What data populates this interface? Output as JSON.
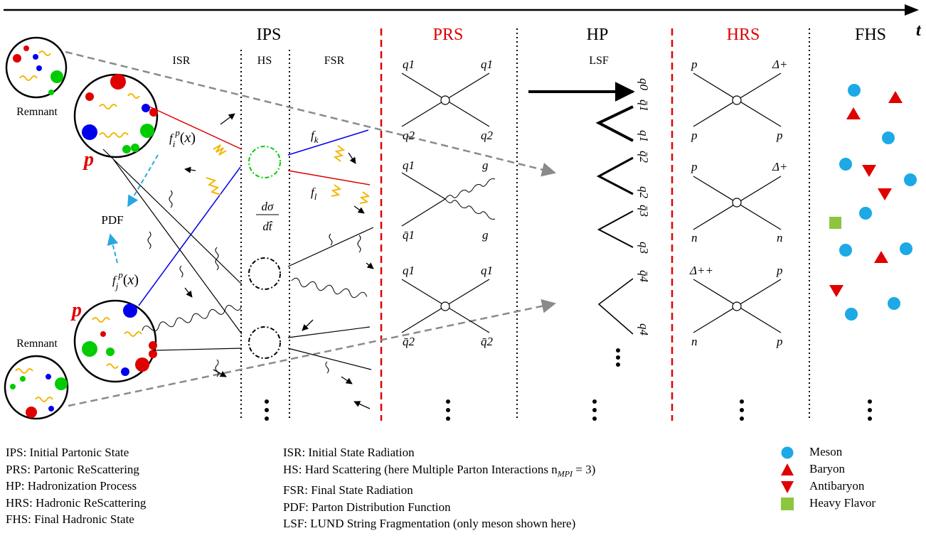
{
  "time_axis_label": "t",
  "stages": [
    {
      "id": "IPS",
      "label": "IPS",
      "color": "#000000"
    },
    {
      "id": "PRS",
      "label": "PRS",
      "color": "#e00000"
    },
    {
      "id": "HP",
      "label": "HP",
      "color": "#000000"
    },
    {
      "id": "HRS",
      "label": "HRS",
      "color": "#e00000"
    },
    {
      "id": "FHS",
      "label": "FHS",
      "color": "#000000"
    }
  ],
  "substages": {
    "isr": "ISR",
    "hs": "HS",
    "fsr": "FSR",
    "lsf": "LSF"
  },
  "labels": {
    "remnant_top": "Remnant",
    "remnant_bottom": "Remnant",
    "proton_top": "p",
    "proton_bottom": "p",
    "pdf": "PDF",
    "fi": "f",
    "fj": "f",
    "fk": "f",
    "fl": "f",
    "dsigma_num": "dσ",
    "dsigma_den": "dt̂"
  },
  "prs_diagrams": [
    {
      "tl": "q1",
      "tr": "q1",
      "bl": "q2",
      "br": "q2"
    },
    {
      "tl": "q1",
      "tr": "g",
      "bl": "q̄1",
      "br": "g"
    },
    {
      "tl": "q1",
      "tr": "q1",
      "bl": "q̄2",
      "br": "q̄2"
    }
  ],
  "hrs_diagrams": [
    {
      "tl": "p",
      "tr": "Δ+",
      "bl": "p",
      "br": "p"
    },
    {
      "tl": "p",
      "tr": "Δ+",
      "bl": "n",
      "br": "n"
    },
    {
      "tl": "Δ++",
      "tr": "p",
      "bl": "n",
      "br": "p"
    }
  ],
  "lsf_labels": [
    "q0",
    "q̄1",
    "q1",
    "q̄2",
    "q2",
    "q̄3",
    "q3",
    "q̄4",
    "q4"
  ],
  "legend_left": [
    "IPS: Initial Partonic State",
    "PRS: Partonic ReScattering",
    "HP: Hadronization Process",
    "HRS: Hadronic ReScattering",
    "FHS: Final Hadronic State"
  ],
  "legend_middle": [
    "ISR: Initial State Radiation",
    "HS: Hard Scattering (here Multiple Parton Interactions n",
    "FSR: Final State Radiation",
    "PDF: Parton Distribution Function",
    "LSF: LUND String Fragmentation (only meson shown here)"
  ],
  "legend_middle_suffix": {
    "sub": "MPI",
    "tail": " = 3)"
  },
  "legend_right": [
    {
      "label": "Meson",
      "shape": "circle",
      "color": "#1ca9e6"
    },
    {
      "label": "Baryon",
      "shape": "triangle-up",
      "color": "#e00000"
    },
    {
      "label": "Antibaryon",
      "shape": "triangle-down",
      "color": "#e00000"
    },
    {
      "label": "Heavy Flavor",
      "shape": "square",
      "color": "#8cc63f"
    }
  ],
  "colors": {
    "meson": "#1ca9e6",
    "baryon": "#e00000",
    "heavy": "#8cc63f",
    "gluon": "#f2b705",
    "red_parton": "#e00000",
    "green_parton": "#00cc00",
    "blue_parton": "#0000ee"
  }
}
